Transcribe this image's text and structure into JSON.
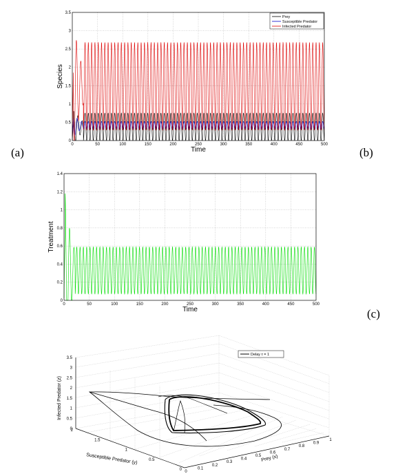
{
  "labels": {
    "a": "(a)",
    "b": "(b)",
    "c": "(c)"
  },
  "chart_data": [
    {
      "type": "line",
      "xlabel": "Time",
      "ylabel": "Species",
      "xlim": [
        0,
        500
      ],
      "ylim": [
        0,
        3.5
      ],
      "xticks": [
        "0",
        "50",
        "100",
        "150",
        "200",
        "250",
        "300",
        "350",
        "400",
        "450",
        "500"
      ],
      "yticks": [
        "0",
        "0.5",
        "1",
        "1.5",
        "2",
        "2.5",
        "3",
        "3.5"
      ],
      "grid": true,
      "legend_position": "top-right",
      "oscillation_count": 73,
      "series": [
        {
          "name": "Prey",
          "color": "#000000",
          "min": 0.0,
          "max": 0.75,
          "initial_peak": 0.8
        },
        {
          "name": "Susceptible Predator",
          "color": "#0000cc",
          "min": 0.3,
          "max": 0.52,
          "initial_peak": 0.78
        },
        {
          "name": "Infected Predator",
          "color": "#dd0000",
          "min": 0.28,
          "max": 2.68,
          "initial_peak": 3.02
        }
      ]
    },
    {
      "type": "line",
      "xlabel": "Time",
      "ylabel": "Treatment",
      "xlim": [
        0,
        500
      ],
      "ylim": [
        0,
        1.4
      ],
      "xticks": [
        "0",
        "50",
        "100",
        "150",
        "200",
        "250",
        "300",
        "350",
        "400",
        "450",
        "500"
      ],
      "yticks": [
        "0",
        "0.2",
        "0.4",
        "0.6",
        "0.8",
        "1",
        "1.2",
        "1.4"
      ],
      "grid": true,
      "oscillation_count": 73,
      "series": [
        {
          "name": "",
          "color": "#00dd00",
          "min": 0.07,
          "max": 0.59,
          "initial_peak": 1.3
        }
      ]
    },
    {
      "type": "line3d",
      "xlabel": "Prey (x)",
      "ylabel": "Susceptible Predator (y)",
      "zlabel": "Infected Predator (z)",
      "xticks": [
        "0",
        "0.1",
        "0.2",
        "0.3",
        "0.4",
        "0.5",
        "0.6",
        "0.7",
        "0.8",
        "0.9",
        "1"
      ],
      "yticks": [
        "0",
        "0.5",
        "1",
        "1.5",
        "2"
      ],
      "zticks": [
        "0",
        "0.5",
        "1",
        "1.5",
        "2",
        "2.5",
        "3",
        "3.5"
      ],
      "grid": true,
      "legend_position": "top-right",
      "series": [
        {
          "name": "Delay τ = 1",
          "color": "#000000"
        }
      ]
    }
  ]
}
